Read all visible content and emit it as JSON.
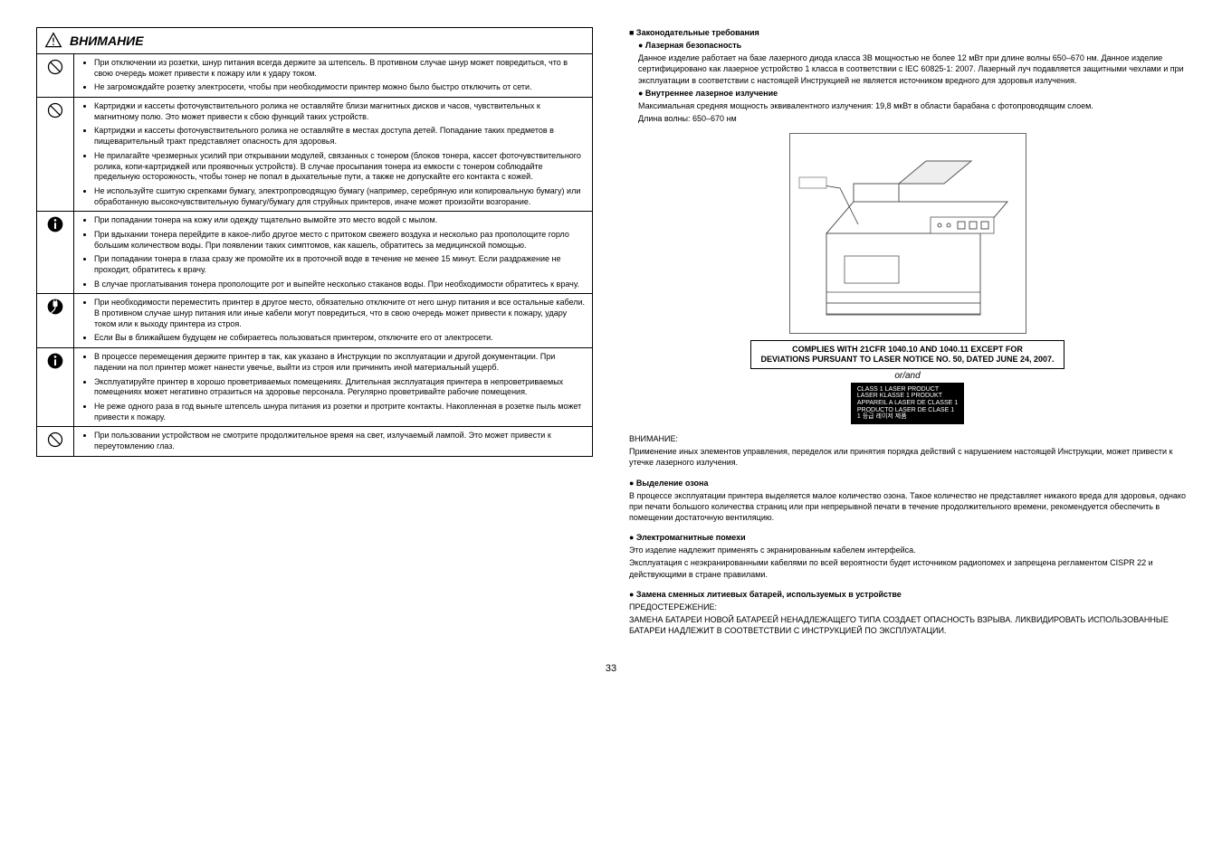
{
  "page_number": "33",
  "left": {
    "header": "ВНИМАНИЕ",
    "groups": [
      {
        "icon": "prohibit",
        "items": [
          "При отключении из розетки, шнур питания всегда держите за штепсель. В противном случае шнур может повредиться, что в свою очередь может привести к пожару или к удару током.",
          "Не загромождайте розетку электросети, чтобы при необходимости принтер можно было быстро отключить от сети."
        ]
      },
      {
        "icon": "prohibit",
        "items": [
          "Картриджи и кассеты фоточувствительного ролика не оставляйте близи магнитных дисков и часов, чувствительных к магнитному полю. Это может привести к сбою функций таких устройств.",
          "Картриджи и кассеты фоточувствительного ролика не оставляйте в местах доступа детей. Попадание таких предметов в пищеварительный тракт представляет опасность для здоровья.",
          "Не прилагайте чрезмерных усилий при открывании модулей, связанных с тонером (блоков тонера, кассет фоточувствительного ролика, копи-картриджей или проявочных устройств). В случае просыпания тонера из емкости с тонером соблюдайте предельную осторожность, чтобы тонер не попал в дыхательные пути, а также не допускайте его контакта с кожей.",
          "Не используйте сшитую скрепками бумагу, электропроводящую бумагу (например, серебряную или копировальную бумагу) или обработанную высокочувствительную бумагу/бумагу для струйных принтеров, иначе может произойти возгорание."
        ]
      },
      {
        "icon": "mandatory",
        "items": [
          "При попадании тонера на кожу или одежду тщательно вымойте это место водой с мылом.",
          "При вдыхании тонера перейдите в какое-либо другое место с притоком свежего воздуха и несколько раз прополощите горло большим количеством воды. При появлении таких симптомов, как кашель, обратитесь за медицинской помощью.",
          "При попадании тонера в глаза сразу же промойте их в проточной воде в течение не менее 15 минут. Если раздражение не проходит, обратитесь к врачу.",
          "В случае проглатывания тонера прополощите рот и выпейте несколько стаканов воды. При необходимости обратитесь к врачу."
        ]
      },
      {
        "icon": "unplug",
        "items": [
          "При необходимости переместить принтер в другое место, обязательно отключите от него шнур питания и все остальные кабели. В противном случае шнур питания или иные кабели могут повредиться, что в свою очередь может привести к пожару, удару током или к выходу принтера из строя.",
          "Если Вы в ближайшем будущем не собираетесь пользоваться принтером, отключите его от электросети."
        ]
      },
      {
        "icon": "mandatory",
        "items": [
          "В процессе перемещения держите принтер в так, как указано в Инструкции по эксплуатации и другой документации. При падении на пол принтер может нанести увечье, выйти из строя или причинить иной материальный ущерб.",
          "Эксплуатируйте принтер в хорошо проветриваемых помещениях. Длительная эксплуатация принтера в непроветриваемых помещениях может негативно отразиться на здоровье персонала. Регулярно проветривайте рабочие помещения.",
          "Не реже одного раза в год выньте штепсель шнура питания из розетки и протрите контакты. Накопленная в розетке пыль может привести к пожару."
        ]
      },
      {
        "icon": "prohibit",
        "items": [
          "При пользовании устройством не смотрите продолжительное время на свет, излучаемый лампой. Это может привести к переутомлению глаз."
        ]
      }
    ]
  },
  "right": {
    "reg_title": "■ Законодательные требования",
    "laser_title": "● Лазерная безопасность",
    "laser_p1": "Данное изделие работает на базе лазерного диода класса 3B мощностью не более 12 мВт при длине волны 650–670 нм. Данное изделие сертифицировано как лазерное устройство 1 класса в соответствии с IEC 60825-1: 2007. Лазерный луч подавляется защитными чехлами и при эксплуатации в соответствии с настоящей Инструкцией не является источником вредного для здоровья излучения.",
    "int_laser_title": "● Внутреннее лазерное излучение",
    "int_laser_p1": "Максимальная средняя мощность эквивалентного излучения: 19,8 мкВт в области барабана с фотопроводящим слоем.",
    "int_laser_p2": "Длина волны: 650–670 нм",
    "compliance1": "COMPLIES WITH 21CFR 1040.10 AND 1040.11 EXCEPT FOR",
    "compliance2": "DEVIATIONS PURSUANT TO LASER NOTICE NO. 50, DATED JUNE 24, 2007.",
    "or_and": "or/and",
    "class_label_1": "CLASS 1 LASER PRODUCT",
    "class_label_2": "LASER KLASSE 1 PRODUKT",
    "class_label_3": "APPAREIL A LASER DE CLASSE 1",
    "class_label_4": "PRODUCTO LASER DE CLASE 1",
    "class_label_5": "1 등급 레이저 제품",
    "attention_label": "ВНИМАНИЕ:",
    "attention_p": "Применение иных элементов управления, переделок или принятия порядка действий с нарушением настоящей Инструкции, может привести к утечке лазерного излучения.",
    "ozone_title": "● Выделение озона",
    "ozone_p": "В процессе эксплуатации принтера выделяется малое количество озона. Такое количество не представляет никакого вреда для здоровья, однако при печати большого количества страниц или при непрерывной печати в течение продолжительного времени, рекомендуется обеспечить в помещении достаточную вентиляцию.",
    "emi_title": "● Электромагнитные помехи",
    "emi_p1": "Это изделие надлежит применять с экранированным кабелем интерфейса.",
    "emi_p2": "Эксплуатация с неэкранированными кабелями по всей вероятности будет источником радиопомех и запрещена регламентом CISPR 22 и действующими в стране правилами.",
    "bat_title": "● Замена сменных литиевых батарей, используемых в устройстве",
    "bat_caution": "ПРЕДОСТЕРЕЖЕНИЕ:",
    "bat_p": "ЗАМЕНА БАТАРЕИ НОВОЙ БАТАРЕЕЙ НЕНАДЛЕЖАЩЕГО ТИПА СОЗДАЕТ ОПАСНОСТЬ ВЗРЫВА. ЛИКВИДИРОВАТЬ ИСПОЛЬЗОВАННЫЕ БАТАРЕИ НАДЛЕЖИТ В СООТВЕТСТВИИ С ИНСТРУКЦИЕЙ ПО ЭКСПЛУАТАЦИИ."
  }
}
